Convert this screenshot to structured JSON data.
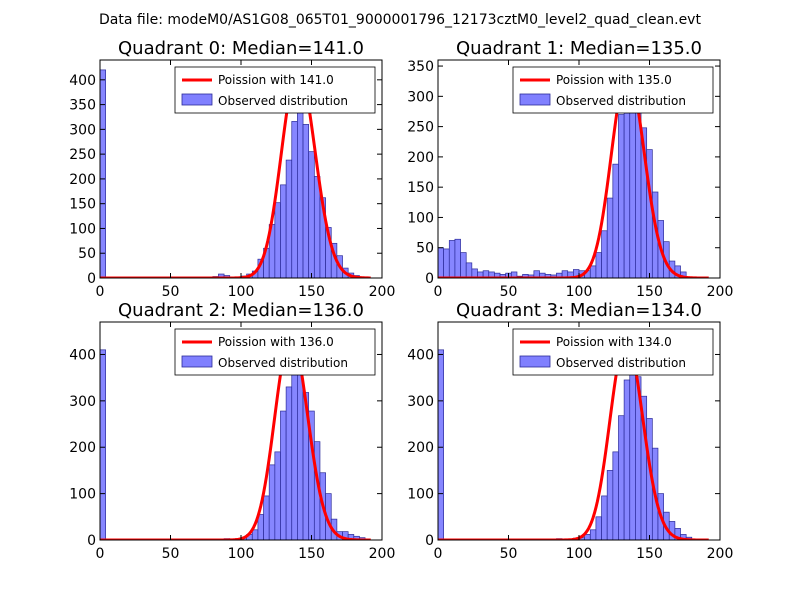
{
  "figure": {
    "suptitle": "Data file: modeM0/AS1G08_065T01_9000001796_12173cztM0_level2_quad_clean.evt"
  },
  "colors": {
    "hist_fill": "#8080ff",
    "hist_edge": "#2b2b99",
    "fit_line": "#ff0000"
  },
  "chart_data": [
    {
      "type": "bar",
      "title": "Quadrant 0: Median=141.0",
      "legend": {
        "line_label": "Poission with 141.0",
        "hist_label": "Observed distribution",
        "placement": "top-right"
      },
      "xlim": [
        0,
        200
      ],
      "ylim": [
        0,
        440
      ],
      "xticks": [
        "0",
        "50",
        "100",
        "150",
        "200"
      ],
      "yticks": [
        "0",
        "50",
        "100",
        "150",
        "200",
        "250",
        "300",
        "350",
        "400"
      ],
      "bin_width": 4,
      "bins": [
        {
          "x": 0,
          "y": 420
        },
        {
          "x": 80,
          "y": 3
        },
        {
          "x": 84,
          "y": 8
        },
        {
          "x": 88,
          "y": 5
        },
        {
          "x": 96,
          "y": 2
        },
        {
          "x": 100,
          "y": 4
        },
        {
          "x": 104,
          "y": 8
        },
        {
          "x": 108,
          "y": 14
        },
        {
          "x": 112,
          "y": 38
        },
        {
          "x": 116,
          "y": 60
        },
        {
          "x": 120,
          "y": 108
        },
        {
          "x": 124,
          "y": 152
        },
        {
          "x": 128,
          "y": 188
        },
        {
          "x": 132,
          "y": 238
        },
        {
          "x": 136,
          "y": 316
        },
        {
          "x": 140,
          "y": 388
        },
        {
          "x": 144,
          "y": 310
        },
        {
          "x": 148,
          "y": 255
        },
        {
          "x": 152,
          "y": 205
        },
        {
          "x": 156,
          "y": 162
        },
        {
          "x": 160,
          "y": 102
        },
        {
          "x": 164,
          "y": 70
        },
        {
          "x": 168,
          "y": 45
        },
        {
          "x": 172,
          "y": 20
        },
        {
          "x": 176,
          "y": 10
        },
        {
          "x": 180,
          "y": 5
        }
      ],
      "fit": {
        "mean": 141.0,
        "peak": 422
      }
    },
    {
      "type": "bar",
      "title": "Quadrant 1: Median=135.0",
      "legend": {
        "line_label": "Poission with 135.0",
        "hist_label": "Observed distribution",
        "placement": "top-right"
      },
      "xlim": [
        0,
        200
      ],
      "ylim": [
        0,
        360
      ],
      "xticks": [
        "0",
        "50",
        "100",
        "150",
        "200"
      ],
      "yticks": [
        "0",
        "50",
        "100",
        "150",
        "200",
        "250",
        "300",
        "350"
      ],
      "bin_width": 4,
      "bins": [
        {
          "x": 0,
          "y": 50
        },
        {
          "x": 4,
          "y": 48
        },
        {
          "x": 8,
          "y": 62
        },
        {
          "x": 12,
          "y": 64
        },
        {
          "x": 16,
          "y": 42
        },
        {
          "x": 20,
          "y": 25
        },
        {
          "x": 24,
          "y": 15
        },
        {
          "x": 28,
          "y": 10
        },
        {
          "x": 32,
          "y": 12
        },
        {
          "x": 36,
          "y": 10
        },
        {
          "x": 40,
          "y": 8
        },
        {
          "x": 44,
          "y": 6
        },
        {
          "x": 48,
          "y": 8
        },
        {
          "x": 52,
          "y": 10
        },
        {
          "x": 56,
          "y": 3
        },
        {
          "x": 60,
          "y": 6
        },
        {
          "x": 64,
          "y": 5
        },
        {
          "x": 68,
          "y": 12
        },
        {
          "x": 72,
          "y": 8
        },
        {
          "x": 76,
          "y": 6
        },
        {
          "x": 80,
          "y": 5
        },
        {
          "x": 84,
          "y": 8
        },
        {
          "x": 88,
          "y": 12
        },
        {
          "x": 92,
          "y": 10
        },
        {
          "x": 96,
          "y": 14
        },
        {
          "x": 100,
          "y": 12
        },
        {
          "x": 104,
          "y": 12
        },
        {
          "x": 108,
          "y": 20
        },
        {
          "x": 112,
          "y": 42
        },
        {
          "x": 116,
          "y": 78
        },
        {
          "x": 120,
          "y": 132
        },
        {
          "x": 124,
          "y": 188
        },
        {
          "x": 128,
          "y": 270
        },
        {
          "x": 132,
          "y": 318
        },
        {
          "x": 136,
          "y": 325
        },
        {
          "x": 140,
          "y": 300
        },
        {
          "x": 144,
          "y": 248
        },
        {
          "x": 148,
          "y": 212
        },
        {
          "x": 152,
          "y": 142
        },
        {
          "x": 156,
          "y": 95
        },
        {
          "x": 160,
          "y": 60
        },
        {
          "x": 164,
          "y": 28
        },
        {
          "x": 168,
          "y": 20
        },
        {
          "x": 172,
          "y": 10
        }
      ],
      "fit": {
        "mean": 135.0,
        "peak": 340
      }
    },
    {
      "type": "bar",
      "title": "Quadrant 2: Median=136.0",
      "legend": {
        "line_label": "Poission with 136.0",
        "hist_label": "Observed distribution",
        "placement": "top-right"
      },
      "xlim": [
        0,
        200
      ],
      "ylim": [
        0,
        470
      ],
      "xticks": [
        "0",
        "50",
        "100",
        "150",
        "200"
      ],
      "yticks": [
        "0",
        "100",
        "200",
        "300",
        "400"
      ],
      "bin_width": 4,
      "bins": [
        {
          "x": 0,
          "y": 410
        },
        {
          "x": 76,
          "y": 2
        },
        {
          "x": 88,
          "y": 3
        },
        {
          "x": 96,
          "y": 3
        },
        {
          "x": 100,
          "y": 5
        },
        {
          "x": 104,
          "y": 12
        },
        {
          "x": 108,
          "y": 22
        },
        {
          "x": 112,
          "y": 55
        },
        {
          "x": 116,
          "y": 95
        },
        {
          "x": 120,
          "y": 162
        },
        {
          "x": 124,
          "y": 190
        },
        {
          "x": 128,
          "y": 278
        },
        {
          "x": 132,
          "y": 330
        },
        {
          "x": 136,
          "y": 382
        },
        {
          "x": 140,
          "y": 372
        },
        {
          "x": 144,
          "y": 318
        },
        {
          "x": 148,
          "y": 278
        },
        {
          "x": 152,
          "y": 212
        },
        {
          "x": 156,
          "y": 145
        },
        {
          "x": 160,
          "y": 100
        },
        {
          "x": 164,
          "y": 45
        },
        {
          "x": 168,
          "y": 18
        },
        {
          "x": 172,
          "y": 18
        },
        {
          "x": 176,
          "y": 12
        },
        {
          "x": 180,
          "y": 8
        },
        {
          "x": 184,
          "y": 5
        }
      ],
      "fit": {
        "mean": 136.0,
        "peak": 440
      }
    },
    {
      "type": "bar",
      "title": "Quadrant 3: Median=134.0",
      "legend": {
        "line_label": "Poission with 134.0",
        "hist_label": "Observed distribution",
        "placement": "top-right"
      },
      "xlim": [
        0,
        200
      ],
      "ylim": [
        0,
        470
      ],
      "xticks": [
        "0",
        "50",
        "100",
        "150",
        "200"
      ],
      "yticks": [
        "0",
        "100",
        "200",
        "300",
        "400"
      ],
      "bin_width": 4,
      "bins": [
        {
          "x": 0,
          "y": 410
        },
        {
          "x": 84,
          "y": 3
        },
        {
          "x": 96,
          "y": 4
        },
        {
          "x": 100,
          "y": 5
        },
        {
          "x": 104,
          "y": 12
        },
        {
          "x": 108,
          "y": 22
        },
        {
          "x": 112,
          "y": 50
        },
        {
          "x": 116,
          "y": 95
        },
        {
          "x": 120,
          "y": 150
        },
        {
          "x": 124,
          "y": 190
        },
        {
          "x": 128,
          "y": 268
        },
        {
          "x": 132,
          "y": 345
        },
        {
          "x": 136,
          "y": 380
        },
        {
          "x": 140,
          "y": 352
        },
        {
          "x": 144,
          "y": 310
        },
        {
          "x": 148,
          "y": 262
        },
        {
          "x": 152,
          "y": 198
        },
        {
          "x": 156,
          "y": 100
        },
        {
          "x": 160,
          "y": 60
        },
        {
          "x": 164,
          "y": 40
        },
        {
          "x": 168,
          "y": 25
        },
        {
          "x": 172,
          "y": 12
        },
        {
          "x": 176,
          "y": 6
        }
      ],
      "fit": {
        "mean": 134.0,
        "peak": 432
      }
    }
  ]
}
